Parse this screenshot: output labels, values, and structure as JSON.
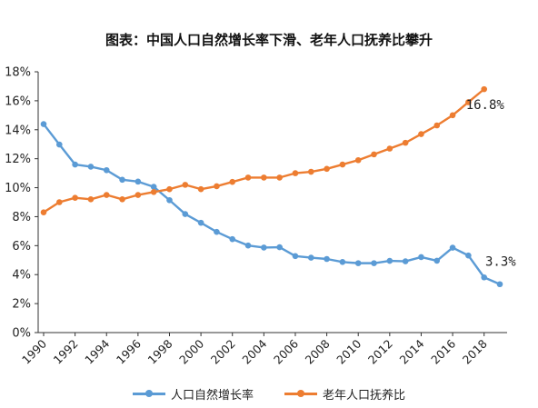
{
  "chart_data": {
    "type": "line",
    "title": "图表：中国人口自然增长率下滑、老年人口抚养比攀升",
    "x": [
      1990,
      1991,
      1992,
      1993,
      1994,
      1995,
      1996,
      1997,
      1998,
      1999,
      2000,
      2001,
      2002,
      2003,
      2004,
      2005,
      2006,
      2007,
      2008,
      2009,
      2010,
      2011,
      2012,
      2013,
      2014,
      2015,
      2016,
      2017,
      2018,
      2019
    ],
    "xticks": [
      "1990",
      "1992",
      "1994",
      "1996",
      "1998",
      "2000",
      "2002",
      "2004",
      "2006",
      "2008",
      "2010",
      "2012",
      "2014",
      "2016",
      "2018"
    ],
    "yticks": [
      "0%",
      "2%",
      "4%",
      "6%",
      "8%",
      "10%",
      "12%",
      "14%",
      "16%",
      "18%"
    ],
    "ylim": [
      0,
      18
    ],
    "grid": false,
    "legend_position": "bottom",
    "series": [
      {
        "name": "人口自然增长率",
        "color": "#5B9BD5",
        "values": [
          14.39,
          12.98,
          11.6,
          11.45,
          11.21,
          10.55,
          10.42,
          10.06,
          9.14,
          8.18,
          7.58,
          6.95,
          6.45,
          6.01,
          5.87,
          5.89,
          5.28,
          5.17,
          5.08,
          4.87,
          4.79,
          4.79,
          4.95,
          4.92,
          5.21,
          4.96,
          5.86,
          5.32,
          3.81,
          3.34
        ],
        "end_label": "3.3%"
      },
      {
        "name": "老年人口抚养比",
        "color": "#ED7D31",
        "values": [
          8.3,
          9.0,
          9.3,
          9.2,
          9.5,
          9.2,
          9.5,
          9.7,
          9.9,
          10.2,
          9.9,
          10.1,
          10.4,
          10.7,
          10.7,
          10.7,
          11.0,
          11.1,
          11.3,
          11.6,
          11.9,
          12.3,
          12.7,
          13.1,
          13.7,
          14.3,
          15.0,
          15.9,
          16.8,
          null
        ],
        "end_label": "16.8%"
      }
    ]
  }
}
